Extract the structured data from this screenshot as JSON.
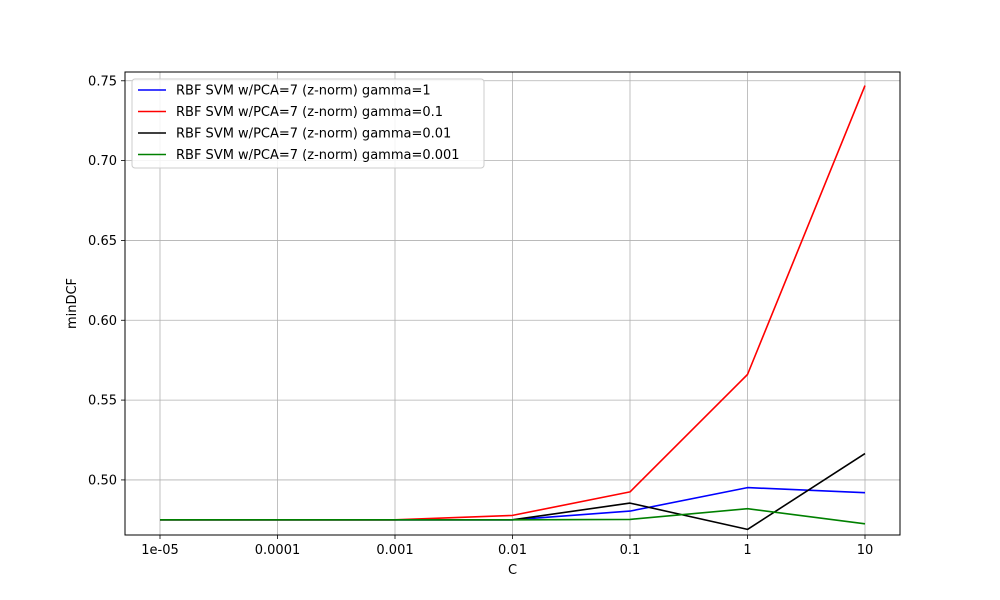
{
  "chart_data": {
    "type": "line",
    "xlabel": "C",
    "ylabel": "minDCF",
    "categories": [
      "1e-05",
      "0.0001",
      "0.001",
      "0.01",
      "0.1",
      "1",
      "10"
    ],
    "ylim": [
      0.4655,
      0.7555
    ],
    "yticks": [
      "0.50",
      "0.55",
      "0.60",
      "0.65",
      "0.70",
      "0.75"
    ],
    "ytick_values": [
      0.5,
      0.55,
      0.6,
      0.65,
      0.7,
      0.75
    ],
    "grid": true,
    "legend_position": "top-left",
    "series": [
      {
        "name": "RBF SVM w/PCA=7 (z-norm) gamma=1",
        "color": "#0000ff",
        "values": [
          0.475,
          0.475,
          0.475,
          0.475,
          0.4805,
          0.4952,
          0.492
        ]
      },
      {
        "name": "RBF SVM w/PCA=7 (z-norm) gamma=0.1",
        "color": "#ff0000",
        "values": [
          0.475,
          0.475,
          0.475,
          0.4778,
          0.4925,
          0.566,
          0.747
        ]
      },
      {
        "name": "RBF SVM w/PCA=7 (z-norm) gamma=0.01",
        "color": "#000000",
        "values": [
          0.475,
          0.475,
          0.475,
          0.475,
          0.4855,
          0.469,
          0.5165
        ]
      },
      {
        "name": "RBF SVM w/PCA=7 (z-norm) gamma=0.001",
        "color": "#008000",
        "values": [
          0.475,
          0.475,
          0.475,
          0.475,
          0.4753,
          0.482,
          0.4725
        ]
      }
    ]
  }
}
